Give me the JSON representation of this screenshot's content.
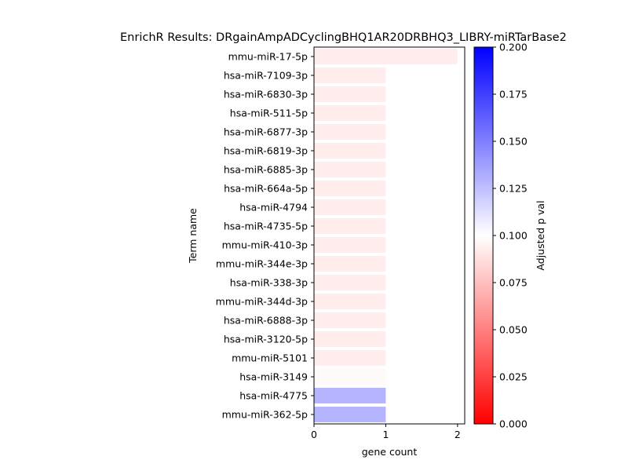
{
  "chart_data": {
    "type": "bar",
    "orientation": "horizontal",
    "title": "EnrichR Results: DRgainAmpADCyclingBHQ1AR20DRBHQ3_LIBRY-miRTarBase2",
    "xlabel": "gene count",
    "ylabel": "Term name",
    "xlim": [
      0,
      2.1
    ],
    "x_ticks": [
      "0",
      "1",
      "2"
    ],
    "categories": [
      "mmu-miR-17-5p",
      "hsa-miR-7109-3p",
      "hsa-miR-6830-3p",
      "hsa-miR-511-5p",
      "hsa-miR-6877-3p",
      "hsa-miR-6819-3p",
      "hsa-miR-6885-3p",
      "hsa-miR-664a-5p",
      "hsa-miR-4794",
      "hsa-miR-4735-5p",
      "mmu-miR-410-3p",
      "mmu-miR-344e-3p",
      "hsa-miR-338-3p",
      "mmu-miR-344d-3p",
      "hsa-miR-6888-3p",
      "hsa-miR-3120-5p",
      "mmu-miR-5101",
      "hsa-miR-3149",
      "hsa-miR-4775",
      "mmu-miR-362-5p"
    ],
    "values": [
      2,
      1,
      1,
      1,
      1,
      1,
      1,
      1,
      1,
      1,
      1,
      1,
      1,
      1,
      1,
      1,
      1,
      1,
      1,
      1
    ],
    "adjusted_p": [
      0.093,
      0.093,
      0.093,
      0.093,
      0.093,
      0.093,
      0.093,
      0.093,
      0.093,
      0.093,
      0.093,
      0.093,
      0.093,
      0.093,
      0.093,
      0.093,
      0.093,
      0.098,
      0.129,
      0.129
    ],
    "colorbar": {
      "label": "Adjusted p val",
      "range": [
        0.0,
        0.2
      ],
      "ticks": [
        "0.000",
        "0.025",
        "0.050",
        "0.075",
        "0.100",
        "0.125",
        "0.150",
        "0.175",
        "0.200"
      ],
      "colors": {
        "low": "#ff0000",
        "mid": "#ffffff",
        "high": "#0000ff"
      }
    },
    "grid": false,
    "legend": "none"
  }
}
